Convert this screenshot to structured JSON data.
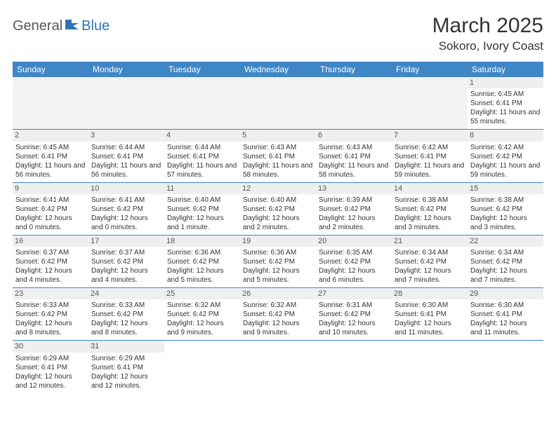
{
  "logo": {
    "text1": "General",
    "text2": "Blue"
  },
  "title": "March 2025",
  "location": "Sokoro, Ivory Coast",
  "colors": {
    "header_bg": "#3f86c7",
    "header_text": "#ffffff",
    "border": "#3f86c7",
    "blank_bg": "#f2f2f2",
    "daynum_bg": "#efefef",
    "logo_gray": "#5a5a5a",
    "logo_blue": "#2f73b5"
  },
  "weekdays": [
    "Sunday",
    "Monday",
    "Tuesday",
    "Wednesday",
    "Thursday",
    "Friday",
    "Saturday"
  ],
  "cells": [
    [
      null,
      null,
      null,
      null,
      null,
      null,
      {
        "day": "1",
        "sunrise": "Sunrise: 6:45 AM",
        "sunset": "Sunset: 6:41 PM",
        "daylight": "Daylight: 11 hours and 55 minutes."
      }
    ],
    [
      {
        "day": "2",
        "sunrise": "Sunrise: 6:45 AM",
        "sunset": "Sunset: 6:41 PM",
        "daylight": "Daylight: 11 hours and 56 minutes."
      },
      {
        "day": "3",
        "sunrise": "Sunrise: 6:44 AM",
        "sunset": "Sunset: 6:41 PM",
        "daylight": "Daylight: 11 hours and 56 minutes."
      },
      {
        "day": "4",
        "sunrise": "Sunrise: 6:44 AM",
        "sunset": "Sunset: 6:41 PM",
        "daylight": "Daylight: 11 hours and 57 minutes."
      },
      {
        "day": "5",
        "sunrise": "Sunrise: 6:43 AM",
        "sunset": "Sunset: 6:41 PM",
        "daylight": "Daylight: 11 hours and 58 minutes."
      },
      {
        "day": "6",
        "sunrise": "Sunrise: 6:43 AM",
        "sunset": "Sunset: 6:41 PM",
        "daylight": "Daylight: 11 hours and 58 minutes."
      },
      {
        "day": "7",
        "sunrise": "Sunrise: 6:42 AM",
        "sunset": "Sunset: 6:41 PM",
        "daylight": "Daylight: 11 hours and 59 minutes."
      },
      {
        "day": "8",
        "sunrise": "Sunrise: 6:42 AM",
        "sunset": "Sunset: 6:42 PM",
        "daylight": "Daylight: 11 hours and 59 minutes."
      }
    ],
    [
      {
        "day": "9",
        "sunrise": "Sunrise: 6:41 AM",
        "sunset": "Sunset: 6:42 PM",
        "daylight": "Daylight: 12 hours and 0 minutes."
      },
      {
        "day": "10",
        "sunrise": "Sunrise: 6:41 AM",
        "sunset": "Sunset: 6:42 PM",
        "daylight": "Daylight: 12 hours and 0 minutes."
      },
      {
        "day": "11",
        "sunrise": "Sunrise: 6:40 AM",
        "sunset": "Sunset: 6:42 PM",
        "daylight": "Daylight: 12 hours and 1 minute."
      },
      {
        "day": "12",
        "sunrise": "Sunrise: 6:40 AM",
        "sunset": "Sunset: 6:42 PM",
        "daylight": "Daylight: 12 hours and 2 minutes."
      },
      {
        "day": "13",
        "sunrise": "Sunrise: 6:39 AM",
        "sunset": "Sunset: 6:42 PM",
        "daylight": "Daylight: 12 hours and 2 minutes."
      },
      {
        "day": "14",
        "sunrise": "Sunrise: 6:38 AM",
        "sunset": "Sunset: 6:42 PM",
        "daylight": "Daylight: 12 hours and 3 minutes."
      },
      {
        "day": "15",
        "sunrise": "Sunrise: 6:38 AM",
        "sunset": "Sunset: 6:42 PM",
        "daylight": "Daylight: 12 hours and 3 minutes."
      }
    ],
    [
      {
        "day": "16",
        "sunrise": "Sunrise: 6:37 AM",
        "sunset": "Sunset: 6:42 PM",
        "daylight": "Daylight: 12 hours and 4 minutes."
      },
      {
        "day": "17",
        "sunrise": "Sunrise: 6:37 AM",
        "sunset": "Sunset: 6:42 PM",
        "daylight": "Daylight: 12 hours and 4 minutes."
      },
      {
        "day": "18",
        "sunrise": "Sunrise: 6:36 AM",
        "sunset": "Sunset: 6:42 PM",
        "daylight": "Daylight: 12 hours and 5 minutes."
      },
      {
        "day": "19",
        "sunrise": "Sunrise: 6:36 AM",
        "sunset": "Sunset: 6:42 PM",
        "daylight": "Daylight: 12 hours and 5 minutes."
      },
      {
        "day": "20",
        "sunrise": "Sunrise: 6:35 AM",
        "sunset": "Sunset: 6:42 PM",
        "daylight": "Daylight: 12 hours and 6 minutes."
      },
      {
        "day": "21",
        "sunrise": "Sunrise: 6:34 AM",
        "sunset": "Sunset: 6:42 PM",
        "daylight": "Daylight: 12 hours and 7 minutes."
      },
      {
        "day": "22",
        "sunrise": "Sunrise: 6:34 AM",
        "sunset": "Sunset: 6:42 PM",
        "daylight": "Daylight: 12 hours and 7 minutes."
      }
    ],
    [
      {
        "day": "23",
        "sunrise": "Sunrise: 6:33 AM",
        "sunset": "Sunset: 6:42 PM",
        "daylight": "Daylight: 12 hours and 8 minutes."
      },
      {
        "day": "24",
        "sunrise": "Sunrise: 6:33 AM",
        "sunset": "Sunset: 6:42 PM",
        "daylight": "Daylight: 12 hours and 8 minutes."
      },
      {
        "day": "25",
        "sunrise": "Sunrise: 6:32 AM",
        "sunset": "Sunset: 6:42 PM",
        "daylight": "Daylight: 12 hours and 9 minutes."
      },
      {
        "day": "26",
        "sunrise": "Sunrise: 6:32 AM",
        "sunset": "Sunset: 6:42 PM",
        "daylight": "Daylight: 12 hours and 9 minutes."
      },
      {
        "day": "27",
        "sunrise": "Sunrise: 6:31 AM",
        "sunset": "Sunset: 6:42 PM",
        "daylight": "Daylight: 12 hours and 10 minutes."
      },
      {
        "day": "28",
        "sunrise": "Sunrise: 6:30 AM",
        "sunset": "Sunset: 6:41 PM",
        "daylight": "Daylight: 12 hours and 11 minutes."
      },
      {
        "day": "29",
        "sunrise": "Sunrise: 6:30 AM",
        "sunset": "Sunset: 6:41 PM",
        "daylight": "Daylight: 12 hours and 11 minutes."
      }
    ],
    [
      {
        "day": "30",
        "sunrise": "Sunrise: 6:29 AM",
        "sunset": "Sunset: 6:41 PM",
        "daylight": "Daylight: 12 hours and 12 minutes."
      },
      {
        "day": "31",
        "sunrise": "Sunrise: 6:29 AM",
        "sunset": "Sunset: 6:41 PM",
        "daylight": "Daylight: 12 hours and 12 minutes."
      },
      null,
      null,
      null,
      null,
      null
    ]
  ]
}
